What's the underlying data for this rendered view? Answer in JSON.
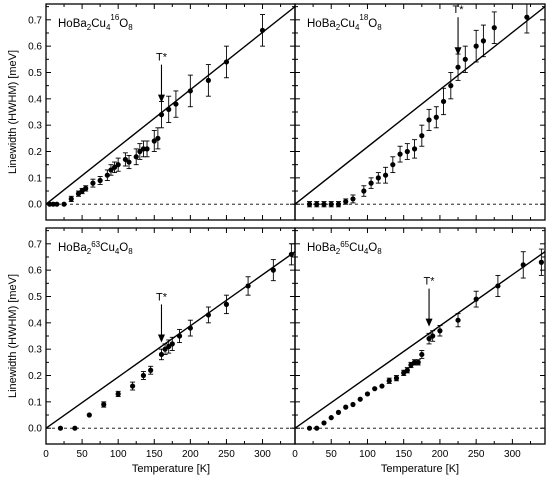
{
  "chart_data": [
    {
      "type": "scatter",
      "panel": "top-left",
      "title": {
        "base": "HoBa",
        "sub1": "2",
        "mid": "Cu",
        "sub2": "4",
        "sup": "16",
        "el": "O",
        "sub3": "8"
      },
      "tstar_label": "T*",
      "tstar_x": 160,
      "fit_line": [
        [
          0,
          0
        ],
        [
          345,
          0.75
        ]
      ],
      "x": [
        5,
        10,
        15,
        25,
        35,
        45,
        50,
        55,
        65,
        75,
        85,
        90,
        95,
        100,
        110,
        115,
        125,
        130,
        135,
        140,
        150,
        155,
        160,
        170,
        180,
        200,
        225,
        250,
        300
      ],
      "y": [
        0.0,
        0.0,
        0.0,
        0.0,
        0.02,
        0.04,
        0.05,
        0.06,
        0.08,
        0.09,
        0.11,
        0.13,
        0.14,
        0.15,
        0.17,
        0.16,
        0.18,
        0.2,
        0.21,
        0.21,
        0.24,
        0.25,
        0.34,
        0.36,
        0.38,
        0.43,
        0.47,
        0.54,
        0.66
      ],
      "err": [
        0.005,
        0.005,
        0.005,
        0.005,
        0.01,
        0.01,
        0.01,
        0.01,
        0.015,
        0.015,
        0.02,
        0.02,
        0.02,
        0.025,
        0.025,
        0.025,
        0.03,
        0.03,
        0.03,
        0.03,
        0.04,
        0.04,
        0.05,
        0.05,
        0.05,
        0.06,
        0.06,
        0.06,
        0.06
      ],
      "xlim": [
        0,
        345
      ],
      "ylim": [
        -0.06,
        0.76
      ]
    },
    {
      "type": "scatter",
      "panel": "top-right",
      "title": {
        "base": "HoBa",
        "sub1": "2",
        "mid": "Cu",
        "sub2": "4",
        "sup": "18",
        "el": "O",
        "sub3": "8"
      },
      "tstar_label": "T*",
      "tstar_x": 225,
      "fit_line": [
        [
          0,
          0
        ],
        [
          345,
          0.75
        ]
      ],
      "x": [
        20,
        30,
        40,
        50,
        60,
        70,
        80,
        95,
        105,
        115,
        125,
        135,
        145,
        155,
        165,
        175,
        185,
        195,
        205,
        215,
        225,
        235,
        250,
        260,
        275,
        320
      ],
      "y": [
        0.0,
        0.0,
        0.0,
        0.0,
        0.0,
        0.01,
        0.02,
        0.05,
        0.08,
        0.1,
        0.11,
        0.15,
        0.19,
        0.2,
        0.21,
        0.26,
        0.32,
        0.33,
        0.39,
        0.45,
        0.52,
        0.55,
        0.6,
        0.62,
        0.67,
        0.71
      ],
      "err": [
        0.01,
        0.01,
        0.01,
        0.01,
        0.01,
        0.01,
        0.015,
        0.02,
        0.02,
        0.02,
        0.03,
        0.03,
        0.03,
        0.03,
        0.035,
        0.04,
        0.04,
        0.04,
        0.05,
        0.05,
        0.05,
        0.05,
        0.06,
        0.06,
        0.06,
        0.06
      ],
      "xlim": [
        0,
        345
      ],
      "ylim": [
        -0.06,
        0.76
      ]
    },
    {
      "type": "scatter",
      "panel": "bottom-left",
      "title": {
        "base": "HoBa",
        "sub1": "2",
        "sup1": "63",
        "mid": "Cu",
        "sub2": "4",
        "el": "O",
        "sub3": "8"
      },
      "tstar_label": "T*",
      "tstar_x": 160,
      "fit_line": [
        [
          0,
          0
        ],
        [
          345,
          0.67
        ]
      ],
      "x": [
        20,
        40,
        60,
        80,
        100,
        120,
        135,
        145,
        160,
        165,
        170,
        175,
        185,
        200,
        225,
        250,
        280,
        315,
        340
      ],
      "y": [
        0.0,
        0.0,
        0.05,
        0.09,
        0.13,
        0.16,
        0.2,
        0.22,
        0.28,
        0.3,
        0.31,
        0.32,
        0.35,
        0.38,
        0.43,
        0.47,
        0.54,
        0.6,
        0.66
      ],
      "err": [
        0.003,
        0.003,
        0.005,
        0.01,
        0.01,
        0.015,
        0.015,
        0.015,
        0.02,
        0.02,
        0.025,
        0.025,
        0.025,
        0.03,
        0.03,
        0.035,
        0.035,
        0.04,
        0.04
      ],
      "xlim": [
        0,
        345
      ],
      "ylim": [
        -0.06,
        0.76
      ]
    },
    {
      "type": "scatter",
      "panel": "bottom-right",
      "title": {
        "base": "HoBa",
        "sub1": "2",
        "sup1": "65",
        "mid": "Cu",
        "sub2": "4",
        "el": "O",
        "sub3": "8"
      },
      "tstar_label": "T*",
      "tstar_x": 185,
      "fit_line": [
        [
          0,
          0
        ],
        [
          345,
          0.67
        ]
      ],
      "x": [
        20,
        30,
        40,
        50,
        60,
        70,
        80,
        90,
        100,
        110,
        120,
        130,
        140,
        150,
        155,
        160,
        165,
        170,
        175,
        185,
        190,
        200,
        225,
        250,
        280,
        315,
        340
      ],
      "y": [
        0.0,
        0.0,
        0.02,
        0.04,
        0.06,
        0.08,
        0.09,
        0.11,
        0.13,
        0.15,
        0.16,
        0.18,
        0.19,
        0.21,
        0.22,
        0.24,
        0.25,
        0.25,
        0.28,
        0.34,
        0.35,
        0.37,
        0.41,
        0.49,
        0.54,
        0.62,
        0.63
      ],
      "err": [
        0.005,
        0.005,
        0.005,
        0.005,
        0.005,
        0.005,
        0.005,
        0.005,
        0.008,
        0.008,
        0.008,
        0.01,
        0.01,
        0.01,
        0.01,
        0.01,
        0.01,
        0.01,
        0.015,
        0.02,
        0.02,
        0.02,
        0.025,
        0.03,
        0.04,
        0.05,
        0.05
      ],
      "xlim": [
        0,
        345
      ],
      "ylim": [
        -0.06,
        0.76
      ]
    }
  ],
  "axes": {
    "ylabel": "Linewidth (HWHM) [meV]",
    "xlabel": "Temperature [K]",
    "yticks": [
      "0.0",
      "0.1",
      "0.2",
      "0.3",
      "0.4",
      "0.5",
      "0.6",
      "0.7"
    ],
    "xticks": [
      "0",
      "50",
      "100",
      "150",
      "200",
      "250",
      "300"
    ]
  }
}
